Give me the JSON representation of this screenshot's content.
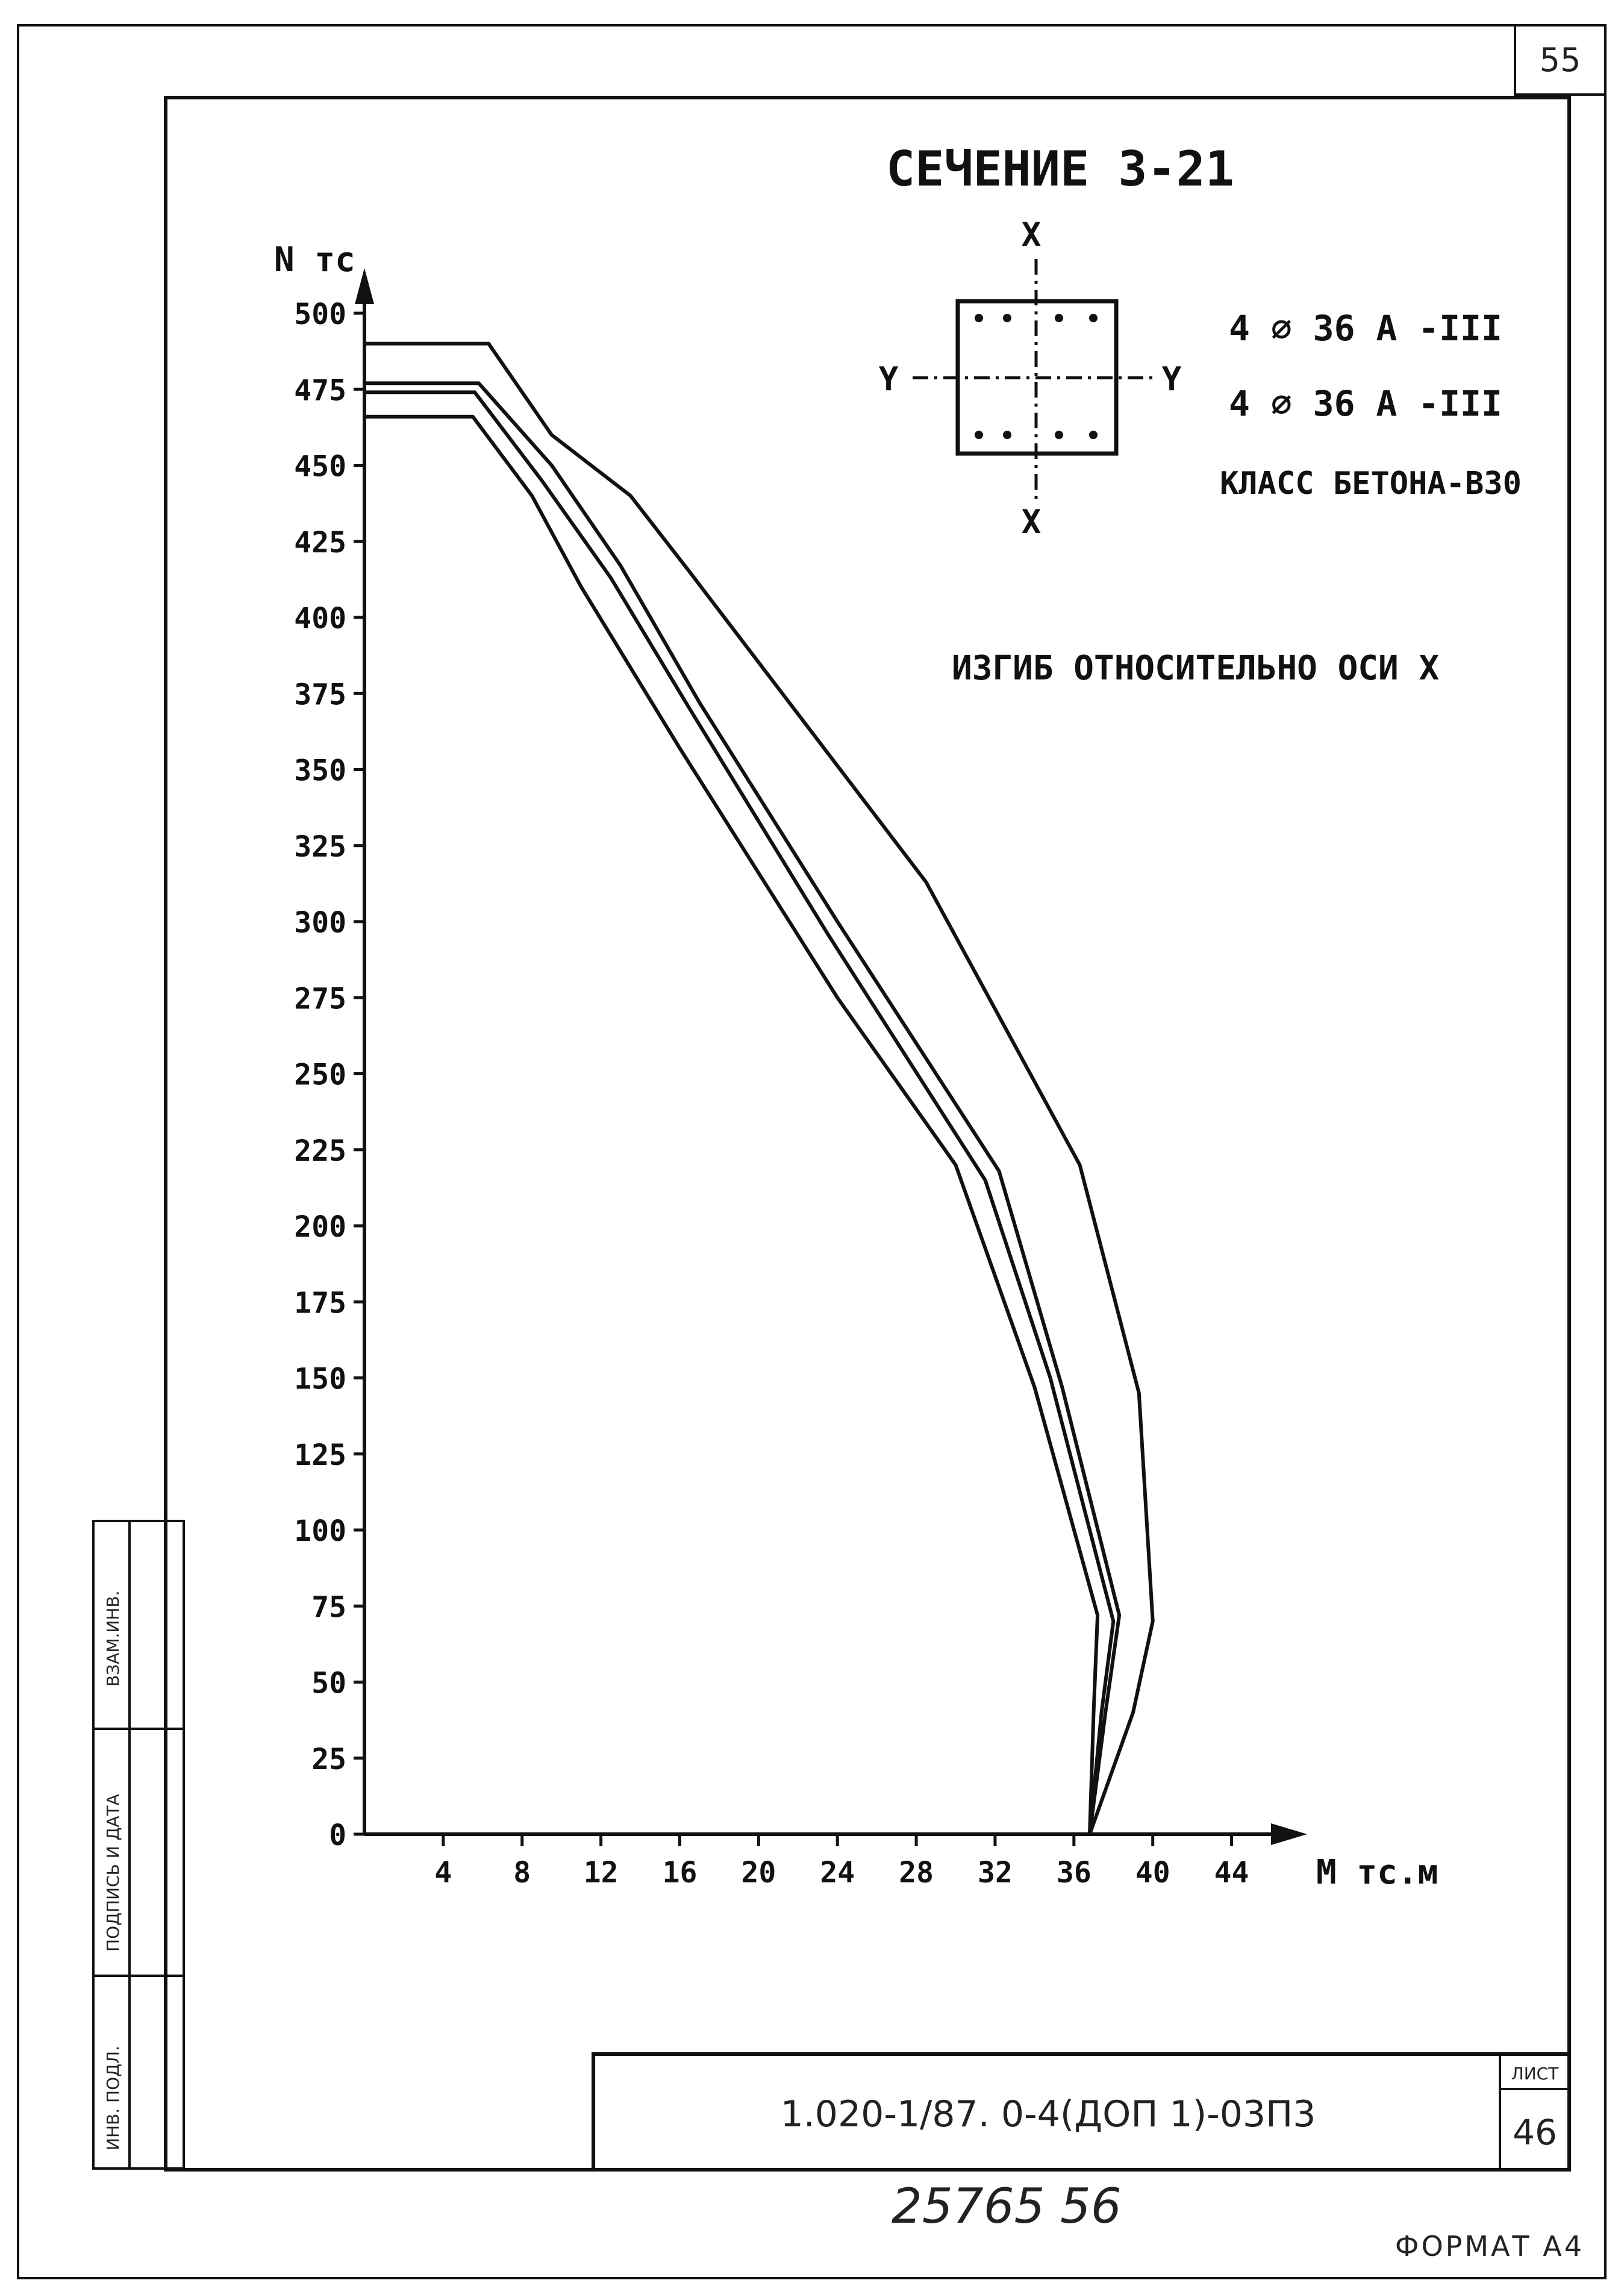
{
  "page": {
    "sheet_corner_number": "55",
    "stamp_label": "ЛИСТ",
    "sheet_number": "46",
    "doc_code": "1.020-1/87. 0-4(ДОП 1)-03П3",
    "handwritten_number": "25765   56",
    "format_label": "ФОРМАТ А4",
    "side_block": {
      "inv_podl": "ИНВ. ПОДЛ.",
      "podpis_data": "ПОДПИСЬ И ДАТА",
      "vzam_inv": "ВЗАМ.ИНВ."
    }
  },
  "section": {
    "title": "СЕЧЕНИЕ 3-21",
    "axis_x_label": "X",
    "axis_y_label": "Y",
    "reinf_top": "4 ⌀ 36 А -III",
    "reinf_bottom": "4 ⌀ 36 А -III",
    "concrete_class": "КЛАСС БЕТОНА-В30",
    "bending_note": "ИЗГИБ ОТНОСИТЕЛЬНО ОСИ Х"
  },
  "chart_data": {
    "type": "line",
    "title": "",
    "xlabel": "М тс.м",
    "ylabel": "N тс",
    "xlim": [
      0,
      46
    ],
    "ylim": [
      0,
      500
    ],
    "x_ticks": [
      4,
      8,
      12,
      16,
      20,
      24,
      28,
      32,
      36,
      40,
      44
    ],
    "y_ticks": [
      0,
      25,
      50,
      75,
      100,
      125,
      150,
      175,
      200,
      225,
      250,
      275,
      300,
      325,
      350,
      375,
      400,
      425,
      450,
      475,
      500
    ],
    "grid": false,
    "legend": "none",
    "series": [
      {
        "points": [
          [
            0,
            490
          ],
          [
            6.3,
            490
          ],
          [
            9.5,
            460
          ],
          [
            13.5,
            440
          ],
          [
            16.5,
            415
          ],
          [
            28.5,
            313
          ],
          [
            36.3,
            220
          ],
          [
            39.3,
            145
          ],
          [
            40,
            70
          ],
          [
            39,
            40
          ],
          [
            36.8,
            0
          ]
        ]
      },
      {
        "points": [
          [
            0,
            477
          ],
          [
            5.8,
            477
          ],
          [
            9.5,
            450
          ],
          [
            13,
            417
          ],
          [
            17,
            372
          ],
          [
            24,
            300
          ],
          [
            32.2,
            218
          ],
          [
            35.4,
            147
          ],
          [
            38.3,
            72
          ],
          [
            37.6,
            40
          ],
          [
            36.8,
            0
          ]
        ]
      },
      {
        "points": [
          [
            0,
            474
          ],
          [
            5.6,
            474
          ],
          [
            9,
            445
          ],
          [
            12.5,
            413
          ],
          [
            16.5,
            370
          ],
          [
            23.5,
            296
          ],
          [
            31.5,
            215
          ],
          [
            34.8,
            150
          ],
          [
            38,
            70
          ],
          [
            37.4,
            40
          ],
          [
            36.8,
            0
          ]
        ]
      },
      {
        "points": [
          [
            0,
            466
          ],
          [
            5.5,
            466
          ],
          [
            8.5,
            440
          ],
          [
            11,
            410
          ],
          [
            16,
            357
          ],
          [
            24,
            275
          ],
          [
            30,
            220
          ],
          [
            34,
            147
          ],
          [
            37.2,
            72
          ],
          [
            37,
            40
          ],
          [
            36.8,
            0
          ]
        ]
      }
    ]
  }
}
